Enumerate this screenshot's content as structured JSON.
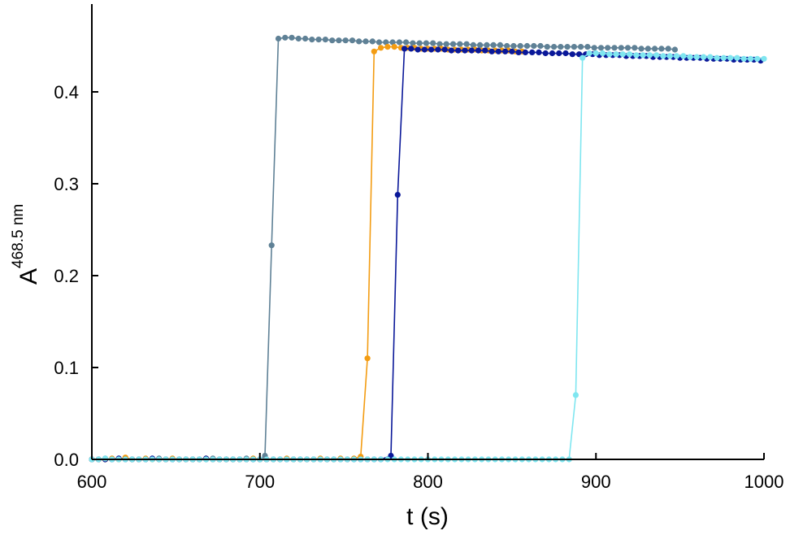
{
  "chart_data": {
    "type": "line",
    "title": "",
    "xlabel": "t (s)",
    "ylabel_main": "A",
    "ylabel_sup": "468.5 nm",
    "xlim": [
      600,
      1000
    ],
    "ylim": [
      0,
      0.46
    ],
    "xticks": [
      600,
      700,
      800,
      900,
      1000
    ],
    "xtick_labels": [
      "600",
      "700",
      "800",
      "900",
      "1000"
    ],
    "yticks": [
      0,
      0.1,
      0.2,
      0.3,
      0.4
    ],
    "ytick_labels": [
      "0.0",
      "0.1",
      "0.2",
      "0.3",
      "0.4"
    ],
    "grid": false,
    "legend": "none",
    "series": [
      {
        "color": "#5f8196",
        "x": [
          600,
          604,
          608,
          612,
          616,
          620,
          624,
          628,
          632,
          636,
          640,
          644,
          648,
          652,
          656,
          660,
          664,
          668,
          672,
          676,
          680,
          684,
          688,
          692,
          696,
          700,
          703,
          707,
          711,
          715,
          719,
          723,
          727,
          731,
          735,
          739,
          743,
          747,
          751,
          755,
          759,
          763,
          767,
          771,
          775,
          779,
          783,
          787,
          791,
          795,
          799,
          803,
          807,
          811,
          815,
          819,
          823,
          827,
          831,
          835,
          839,
          843,
          847,
          851,
          855,
          859,
          863,
          867,
          871,
          875,
          879,
          883,
          887,
          891,
          895,
          899,
          903,
          907,
          911,
          915,
          919,
          923,
          927,
          931,
          935,
          939,
          943,
          947
        ],
        "y": [
          0.0,
          0.0,
          0.001,
          0.0,
          0.0,
          0.001,
          0.0,
          0.0,
          0.0,
          0.0,
          0.001,
          0.0,
          0.0,
          0.0,
          0.0,
          0.0,
          0.0,
          0.0,
          0.001,
          0.0,
          0.0,
          0.0,
          0.0,
          0.001,
          0.0,
          0.0,
          0.004,
          0.233,
          0.458,
          0.459,
          0.459,
          0.458,
          0.458,
          0.457,
          0.457,
          0.457,
          0.456,
          0.456,
          0.456,
          0.456,
          0.455,
          0.455,
          0.455,
          0.454,
          0.454,
          0.454,
          0.454,
          0.454,
          0.453,
          0.453,
          0.453,
          0.453,
          0.452,
          0.452,
          0.452,
          0.452,
          0.452,
          0.451,
          0.451,
          0.451,
          0.451,
          0.451,
          0.45,
          0.45,
          0.45,
          0.45,
          0.45,
          0.45,
          0.449,
          0.449,
          0.449,
          0.449,
          0.449,
          0.449,
          0.449,
          0.448,
          0.448,
          0.448,
          0.448,
          0.448,
          0.448,
          0.448,
          0.447,
          0.447,
          0.447,
          0.447,
          0.447,
          0.446
        ]
      },
      {
        "color": "#f39c12",
        "x": [
          600,
          604,
          608,
          612,
          616,
          620,
          624,
          628,
          632,
          636,
          640,
          644,
          648,
          652,
          656,
          660,
          664,
          668,
          672,
          676,
          680,
          684,
          688,
          692,
          696,
          700,
          704,
          708,
          712,
          716,
          720,
          724,
          728,
          732,
          736,
          740,
          744,
          748,
          752,
          756,
          760,
          764,
          768,
          772,
          776,
          780,
          784,
          788,
          792,
          796,
          800,
          804,
          808,
          812,
          816,
          820,
          824,
          828,
          832,
          836,
          840,
          844,
          848,
          852,
          856
        ],
        "y": [
          0.0,
          0.0,
          0.0,
          0.001,
          0.0,
          0.002,
          0.0,
          0.0,
          0.001,
          0.0,
          0.0,
          0.0,
          0.001,
          0.0,
          0.0,
          0.0,
          0.0,
          0.001,
          0.0,
          0.0,
          0.0,
          0.0,
          0.0,
          0.0,
          0.001,
          0.0,
          0.0,
          0.0,
          0.0,
          0.001,
          0.0,
          0.0,
          0.0,
          0.0,
          0.001,
          0.0,
          0.0,
          0.001,
          0.0,
          0.001,
          0.003,
          0.11,
          0.444,
          0.448,
          0.449,
          0.449,
          0.448,
          0.448,
          0.448,
          0.447,
          0.447,
          0.447,
          0.447,
          0.446,
          0.446,
          0.446,
          0.446,
          0.446,
          0.445,
          0.445,
          0.445,
          0.445,
          0.445,
          0.444,
          0.444
        ]
      },
      {
        "color": "#0a1899",
        "x": [
          600,
          604,
          608,
          612,
          616,
          620,
          624,
          628,
          632,
          636,
          640,
          644,
          648,
          652,
          656,
          660,
          664,
          668,
          672,
          676,
          680,
          684,
          688,
          692,
          696,
          700,
          704,
          708,
          712,
          716,
          720,
          724,
          728,
          732,
          736,
          740,
          744,
          748,
          752,
          756,
          760,
          764,
          768,
          772,
          778,
          782,
          786,
          790,
          794,
          798,
          802,
          806,
          810,
          814,
          818,
          822,
          826,
          830,
          834,
          838,
          842,
          846,
          850,
          854,
          858,
          862,
          866,
          870,
          874,
          878,
          882,
          886,
          890,
          894,
          898,
          902,
          906,
          910,
          914,
          918,
          922,
          926,
          930,
          934,
          938,
          942,
          946,
          950,
          954,
          958,
          962,
          966,
          970,
          974,
          978,
          982,
          986,
          990,
          994,
          998
        ],
        "y": [
          0.0,
          0.0,
          0.0,
          0.0,
          0.001,
          0.0,
          0.0,
          0.0,
          0.0,
          0.001,
          0.0,
          0.0,
          0.0,
          0.0,
          0.0,
          0.0,
          0.0,
          0.001,
          0.0,
          0.0,
          0.0,
          0.0,
          0.0,
          0.0,
          0.0,
          0.0,
          0.0,
          0.0,
          0.0,
          0.0,
          0.0,
          0.0,
          0.0,
          0.0,
          0.0,
          0.0,
          0.0,
          0.0,
          0.0,
          0.0,
          0.0,
          0.0,
          0.0,
          0.0,
          0.004,
          0.288,
          0.447,
          0.447,
          0.446,
          0.446,
          0.446,
          0.446,
          0.446,
          0.445,
          0.445,
          0.445,
          0.445,
          0.445,
          0.445,
          0.444,
          0.444,
          0.444,
          0.444,
          0.443,
          0.443,
          0.443,
          0.443,
          0.442,
          0.442,
          0.442,
          0.442,
          0.441,
          0.441,
          0.441,
          0.441,
          0.44,
          0.44,
          0.44,
          0.44,
          0.439,
          0.439,
          0.439,
          0.439,
          0.438,
          0.438,
          0.438,
          0.438,
          0.437,
          0.437,
          0.437,
          0.437,
          0.436,
          0.436,
          0.436,
          0.436,
          0.435,
          0.435,
          0.435,
          0.435,
          0.434
        ]
      },
      {
        "color": "#7fe6f0",
        "x": [
          600,
          604,
          608,
          612,
          616,
          620,
          624,
          628,
          632,
          636,
          640,
          644,
          648,
          652,
          656,
          660,
          664,
          668,
          672,
          676,
          680,
          684,
          688,
          692,
          696,
          700,
          704,
          708,
          712,
          716,
          720,
          724,
          728,
          732,
          736,
          740,
          744,
          748,
          752,
          756,
          760,
          764,
          768,
          772,
          776,
          780,
          784,
          788,
          792,
          796,
          800,
          804,
          808,
          812,
          816,
          820,
          824,
          828,
          832,
          836,
          840,
          844,
          848,
          852,
          856,
          860,
          864,
          868,
          872,
          876,
          880,
          884,
          888,
          892,
          896,
          900,
          904,
          908,
          912,
          916,
          920,
          924,
          928,
          932,
          936,
          940,
          944,
          948,
          952,
          956,
          960,
          964,
          968,
          972,
          976,
          980,
          984,
          988,
          992,
          996,
          1000
        ],
        "y": [
          0.0,
          0.0,
          0.001,
          0.0,
          0.0,
          0.0,
          0.0,
          0.0,
          0.0,
          0.0,
          0.0,
          0.0,
          0.0,
          0.0,
          0.0,
          0.0,
          0.0,
          0.0,
          0.0,
          0.0,
          0.0,
          0.0,
          0.0,
          0.0,
          0.0,
          0.0,
          0.0,
          0.0,
          0.0,
          0.0,
          0.0,
          0.0,
          0.0,
          0.0,
          0.0,
          0.0,
          0.0,
          0.0,
          0.0,
          0.0,
          0.0,
          0.0,
          0.0,
          0.0,
          0.0,
          0.0,
          0.0,
          0.0,
          0.0,
          0.0,
          0.0,
          0.0,
          0.0,
          0.0,
          0.0,
          0.0,
          0.0,
          0.0,
          0.0,
          0.0,
          0.0,
          0.0,
          0.0,
          0.0,
          0.0,
          0.0,
          0.0,
          0.0,
          0.0,
          0.0,
          0.0,
          0.0,
          0.07,
          0.437,
          0.442,
          0.442,
          0.442,
          0.441,
          0.441,
          0.441,
          0.441,
          0.44,
          0.44,
          0.44,
          0.44,
          0.439,
          0.439,
          0.439,
          0.439,
          0.438,
          0.438,
          0.438,
          0.438,
          0.437,
          0.437,
          0.437,
          0.437,
          0.436,
          0.436,
          0.436,
          0.436
        ]
      }
    ]
  }
}
